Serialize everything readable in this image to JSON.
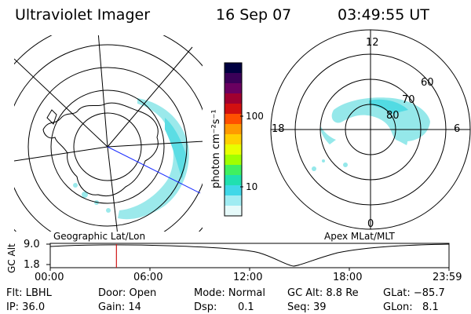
{
  "header": {
    "instrument": "Ultraviolet Imager",
    "date": "16 Sep 07",
    "time": "03:49:55 UT"
  },
  "left_map": {
    "caption": "Geographic Lat/Lon"
  },
  "right_map": {
    "caption": "Apex MLat/MLT",
    "mlt_labels": {
      "top": "12",
      "bottom": "0",
      "left": "18",
      "right": "6"
    },
    "lat_labels": [
      "60",
      "70",
      "80"
    ]
  },
  "colorbar": {
    "unit_label": "photon cm⁻²s⁻¹",
    "ticks": [
      "100",
      "10"
    ],
    "colors": [
      "#000040",
      "#3a0058",
      "#6a0060",
      "#a00030",
      "#d21010",
      "#ff5000",
      "#ff9a00",
      "#ffd000",
      "#e8ff00",
      "#a0ff00",
      "#40f060",
      "#20e0b0",
      "#40d8e8",
      "#a0ecf2",
      "#e6fafa"
    ]
  },
  "altitude_plot": {
    "ylabel": "GC Alt",
    "ymax_label": "9.0",
    "ymin_label": "1.8",
    "x_ticks": [
      "00:00",
      "06:00",
      "12:00",
      "18:00",
      "23:59"
    ],
    "current_time_fraction": 0.166
  },
  "footer": {
    "filter": "Flt: LBHL",
    "door": "Door: Open",
    "mode": "Mode: Normal",
    "gc_alt": "GC Alt: 8.8 Re",
    "glat": "GLat: −85.7",
    "ip": "IP: 36.0",
    "gain": "Gain: 14",
    "dsp_label": "Dsp:",
    "dsp_value": "0.1",
    "seq": "Seq: 39",
    "glon": "GLon:   8.1"
  }
}
